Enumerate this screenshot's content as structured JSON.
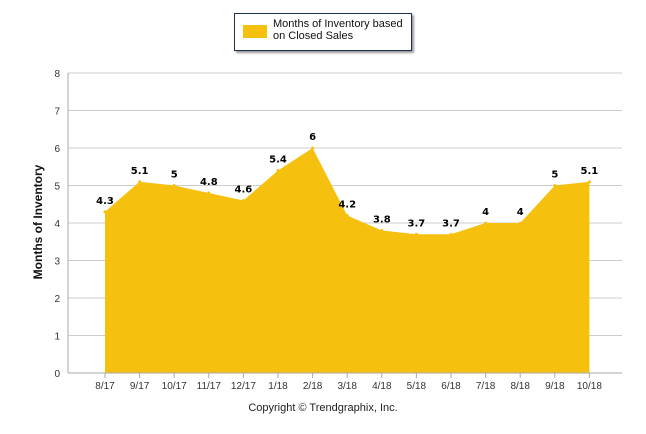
{
  "chart_data": {
    "type": "area",
    "categories": [
      "8/17",
      "9/17",
      "10/17",
      "11/17",
      "12/17",
      "1/18",
      "2/18",
      "3/18",
      "4/18",
      "5/18",
      "6/18",
      "7/18",
      "8/18",
      "9/18",
      "10/18"
    ],
    "series": [
      {
        "name": "Months of Inventory based on Closed Sales",
        "values": [
          4.3,
          5.1,
          5,
          4.8,
          4.6,
          5.4,
          6,
          4.2,
          3.8,
          3.7,
          3.7,
          4,
          4,
          5,
          5.1
        ],
        "color": "#f5c10e"
      }
    ],
    "ylabel": "Months of Inventory",
    "xlabel": "",
    "ylim": [
      0,
      8
    ],
    "yticks": [
      0,
      1,
      2,
      3,
      4,
      5,
      6,
      7,
      8
    ],
    "grid": true,
    "legend_position": "top-center",
    "data_labels": true
  },
  "legend": {
    "label": "Months of Inventory based on Closed Sales"
  },
  "footer": {
    "copyright": "Copyright © Trendgraphix, Inc."
  },
  "colors": {
    "area": "#f5c10e",
    "grid": "#cccccc",
    "axis": "#aaaaaa"
  }
}
